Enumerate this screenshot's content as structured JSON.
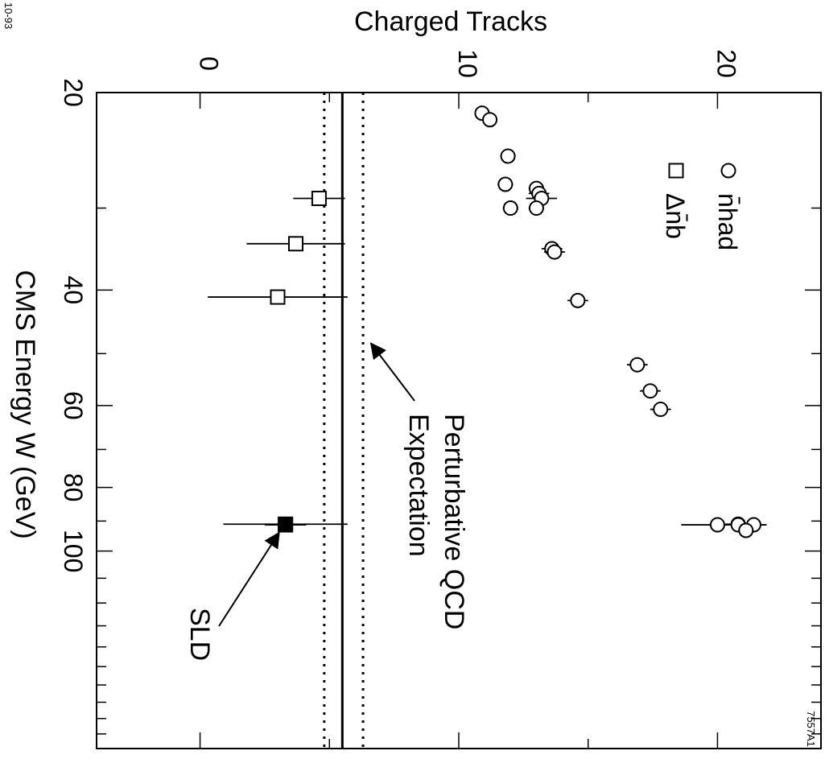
{
  "corner_labels": {
    "top_left": "10-93",
    "bottom_right": "7557A1"
  },
  "colors": {
    "ink": "#000000",
    "open_marker_fill": "#ffffff",
    "filled_marker": "#000000"
  },
  "chart_data": {
    "type": "scatter",
    "orientation": "rotated 90 degrees clockwise",
    "title": "",
    "xlabel": "CMS Energy W   (GeV)",
    "ylabel": "Charged Tracks",
    "x_scale": "log",
    "xlim": [
      20,
      200
    ],
    "ylim": [
      -4,
      24
    ],
    "x_ticks": [
      20,
      40,
      60,
      80,
      100
    ],
    "x_tick_labels": [
      "20",
      "40",
      "60",
      "80",
      "100"
    ],
    "y_ticks": [
      0,
      10,
      20
    ],
    "y_tick_labels": [
      "0",
      "10",
      "20"
    ],
    "grid": false,
    "legend_position": "top-right",
    "series": [
      {
        "name": "n̄had",
        "marker": "open-circle",
        "points": [
          {
            "x": 21.5,
            "y": 10.9,
            "err": 0.1
          },
          {
            "x": 22.0,
            "y": 11.2,
            "err": 0.1
          },
          {
            "x": 25.0,
            "y": 11.9,
            "err": 0.3
          },
          {
            "x": 27.6,
            "y": 11.8,
            "err": 0.3
          },
          {
            "x": 28.0,
            "y": 13.0,
            "err": 0.3
          },
          {
            "x": 28.5,
            "y": 13.1,
            "err": 0.4
          },
          {
            "x": 29.0,
            "y": 13.2,
            "err": 0.6
          },
          {
            "x": 30.0,
            "y": 12.0,
            "err": 0.3
          },
          {
            "x": 30.0,
            "y": 13.0,
            "err": 0.3
          },
          {
            "x": 34.6,
            "y": 13.6,
            "err": 0.4
          },
          {
            "x": 35.0,
            "y": 13.7,
            "err": 0.4
          },
          {
            "x": 41.5,
            "y": 14.6,
            "err": 0.4
          },
          {
            "x": 52.0,
            "y": 16.9,
            "err": 0.4
          },
          {
            "x": 57.0,
            "y": 17.4,
            "err": 0.4
          },
          {
            "x": 60.8,
            "y": 17.8,
            "err": 0.4
          },
          {
            "x": 91.0,
            "y": 20.8,
            "err": 0.5
          },
          {
            "x": 91.2,
            "y": 20.0,
            "err": 1.4
          },
          {
            "x": 91.2,
            "y": 20.8,
            "err": 0.3
          },
          {
            "x": 91.2,
            "y": 21.4,
            "err": 0.5
          },
          {
            "x": 93.0,
            "y": 21.1,
            "err": 0.3
          }
        ]
      },
      {
        "name": "Δn̄b",
        "marker": "open-square",
        "points": [
          {
            "x": 29.0,
            "y": 4.6,
            "err": 1.0
          },
          {
            "x": 34.0,
            "y": 3.7,
            "err": 1.9
          },
          {
            "x": 41.0,
            "y": 3.0,
            "err": 2.7
          },
          {
            "x": 91.0,
            "y": 3.3,
            "err": 2.4
          }
        ]
      },
      {
        "name": "SLD",
        "marker": "filled-square",
        "points": [
          {
            "x": 91.2,
            "y": 3.3,
            "err": 0.8
          }
        ]
      }
    ],
    "reference_lines": [
      {
        "y": 5.5,
        "style": "solid"
      },
      {
        "y": 4.8,
        "style": "dotted"
      },
      {
        "y": 6.3,
        "style": "dotted"
      }
    ],
    "annotations": [
      {
        "text_lines": [
          "Perturbative QCD",
          "Expectation"
        ],
        "target": {
          "x": 48,
          "y": 6.3
        }
      },
      {
        "text_lines": [
          "SLD"
        ],
        "target": {
          "x": 91.2,
          "y": 3.3
        }
      }
    ]
  }
}
